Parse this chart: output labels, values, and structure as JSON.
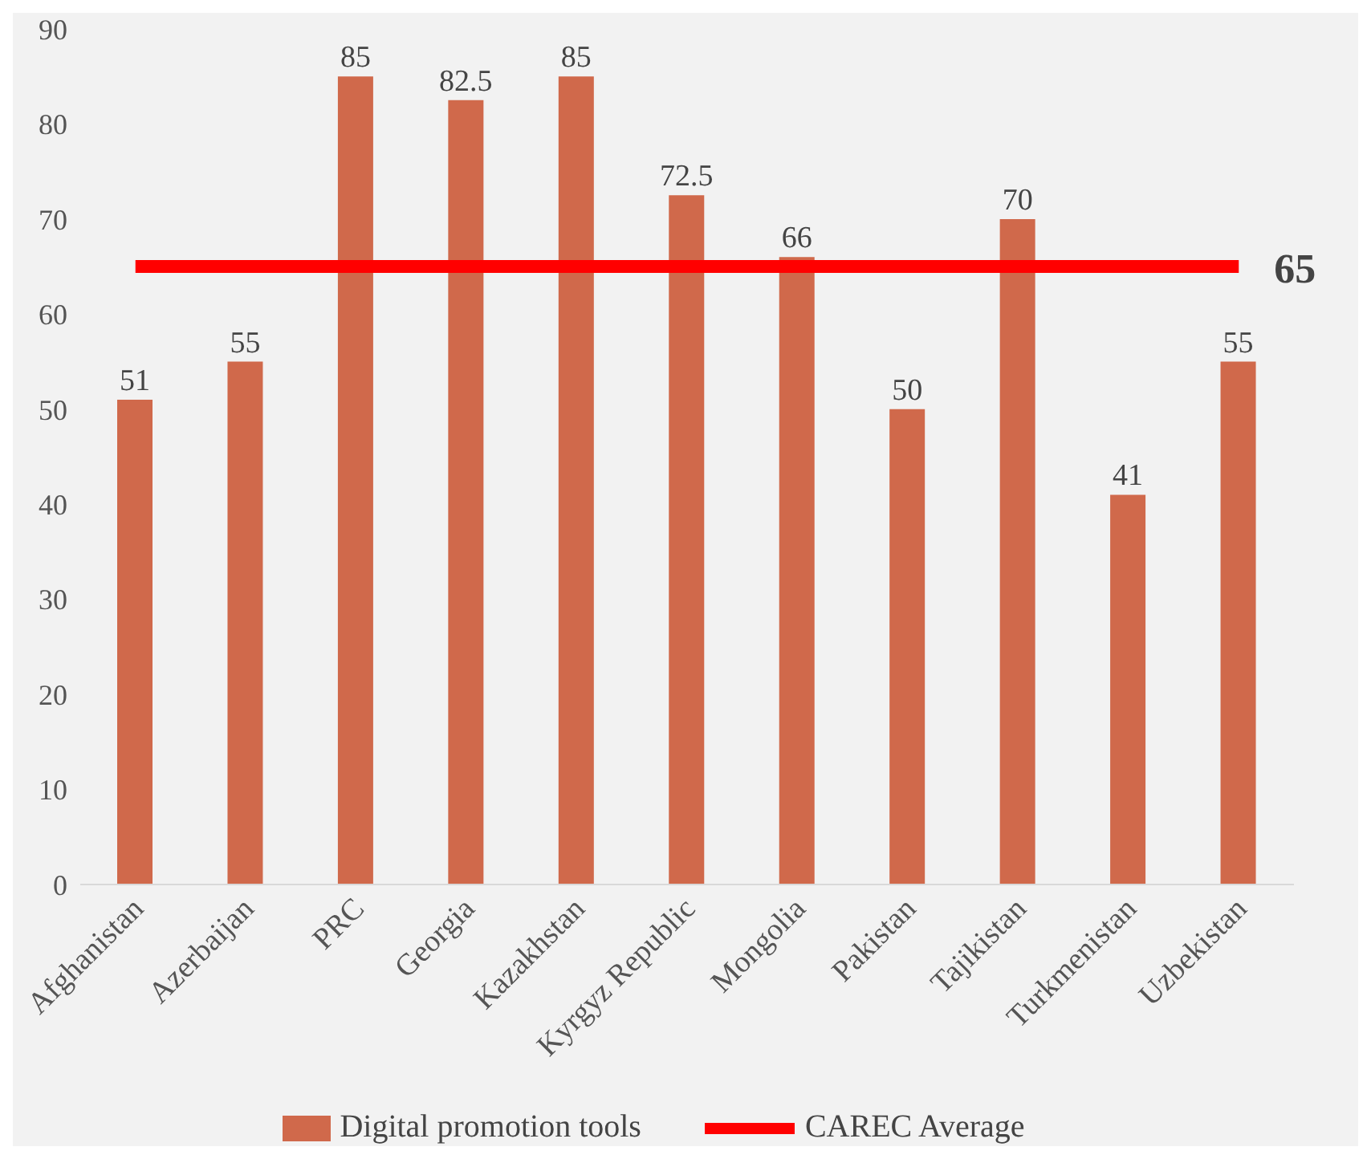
{
  "chart_data": {
    "type": "bar",
    "categories": [
      "Afghanistan",
      "Azerbaijan",
      "PRC",
      "Georgia",
      "Kazakhstan",
      "Kyrgyz Republic",
      "Mongolia",
      "Pakistan",
      "Tajikistan",
      "Turkmenistan",
      "Uzbekistan"
    ],
    "series": [
      {
        "name": "Digital promotion tools",
        "color": "#d0694b",
        "values": [
          51,
          55,
          85,
          82.5,
          85,
          72.5,
          66,
          50,
          70,
          41,
          55
        ]
      },
      {
        "name": "CAREC Average",
        "type": "line",
        "color": "#ff0000",
        "values": [
          65,
          65,
          65,
          65,
          65,
          65,
          65,
          65,
          65,
          65,
          65
        ],
        "value_labels": [
          null,
          null,
          null,
          null,
          null,
          null,
          null,
          null,
          null,
          null,
          "65"
        ]
      }
    ],
    "ylim": [
      0,
      90
    ],
    "yticks": [
      0,
      10,
      20,
      30,
      40,
      50,
      60,
      70,
      80,
      90
    ],
    "grid": false,
    "legend": "bottom",
    "data_labels": true,
    "marker": "none",
    "line_style": "solid"
  }
}
